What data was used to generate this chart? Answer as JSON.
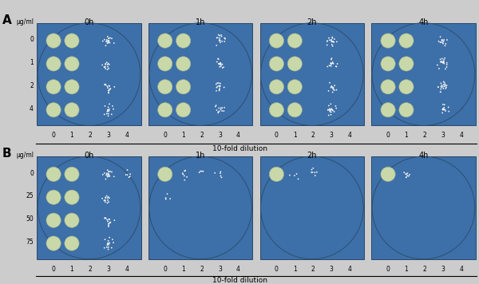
{
  "panel_A_label": "A",
  "panel_B_label": "B",
  "time_labels": [
    "0h",
    "1h",
    "2h",
    "4h"
  ],
  "panel_A_conc_labels": [
    "0",
    "1",
    "2",
    "4"
  ],
  "panel_B_conc_labels": [
    "0",
    "25",
    "50",
    "75"
  ],
  "dilution_labels": [
    "0",
    "1",
    "2",
    "3",
    "4"
  ],
  "xlabel": "10-fold dilution",
  "ylabel": "μg/ml",
  "plate_bg_color": "#3d6fa8",
  "spot_confluent_color": "#c8d8a8",
  "spot_light_color": "#dce8cc",
  "colony_color": "#f2f2f2",
  "fig_bg": "#cccccc",
  "panel_bg": "#c8c8c8",
  "panel_A": {
    "0h": [
      [
        2,
        2,
        3,
        2,
        0
      ],
      [
        2,
        2,
        3,
        2,
        0
      ],
      [
        2,
        2,
        3,
        2,
        0
      ],
      [
        2,
        2,
        3,
        2,
        0
      ]
    ],
    "1h": [
      [
        2,
        2,
        3,
        2,
        0
      ],
      [
        2,
        2,
        3,
        2,
        0
      ],
      [
        2,
        2,
        3,
        2,
        0
      ],
      [
        2,
        2,
        3,
        2,
        0
      ]
    ],
    "2h": [
      [
        2,
        2,
        3,
        2,
        0
      ],
      [
        2,
        2,
        3,
        2,
        0
      ],
      [
        2,
        2,
        3,
        2,
        0
      ],
      [
        2,
        2,
        3,
        2,
        0
      ]
    ],
    "4h": [
      [
        2,
        2,
        3,
        2,
        0
      ],
      [
        2,
        2,
        3,
        2,
        0
      ],
      [
        2,
        2,
        3,
        2,
        0
      ],
      [
        2,
        2,
        3,
        2,
        0
      ]
    ]
  },
  "panel_B": {
    "0h": [
      [
        2,
        2,
        3,
        2,
        1
      ],
      [
        2,
        2,
        3,
        2,
        0
      ],
      [
        2,
        2,
        3,
        2,
        0
      ],
      [
        2,
        2,
        3,
        2,
        0
      ]
    ],
    "1h": [
      [
        2,
        1,
        1,
        1,
        0
      ],
      [
        1,
        0,
        0,
        0,
        0
      ],
      [
        0,
        0,
        0,
        0,
        0
      ],
      [
        0,
        0,
        0,
        0,
        0
      ]
    ],
    "2h": [
      [
        2,
        1,
        1,
        0,
        0
      ],
      [
        0,
        0,
        0,
        0,
        0
      ],
      [
        0,
        0,
        0,
        0,
        0
      ],
      [
        0,
        0,
        0,
        0,
        0
      ]
    ],
    "4h": [
      [
        2,
        1,
        0,
        0,
        0
      ],
      [
        0,
        0,
        0,
        0,
        0
      ],
      [
        0,
        0,
        0,
        0,
        0
      ],
      [
        0,
        0,
        0,
        0,
        0
      ]
    ]
  },
  "spot_type_A": {
    "0h": [
      [
        1,
        1,
        2,
        2,
        0
      ],
      [
        1,
        1,
        2,
        2,
        0
      ],
      [
        1,
        1,
        2,
        2,
        0
      ],
      [
        1,
        1,
        2,
        2,
        0
      ]
    ],
    "1h": [
      [
        1,
        1,
        2,
        2,
        0
      ],
      [
        1,
        1,
        2,
        2,
        0
      ],
      [
        1,
        1,
        2,
        2,
        0
      ],
      [
        1,
        1,
        2,
        2,
        0
      ]
    ],
    "2h": [
      [
        1,
        1,
        2,
        2,
        0
      ],
      [
        1,
        1,
        2,
        2,
        0
      ],
      [
        1,
        1,
        2,
        2,
        0
      ],
      [
        1,
        1,
        2,
        2,
        0
      ]
    ],
    "4h": [
      [
        1,
        1,
        2,
        2,
        0
      ],
      [
        1,
        1,
        2,
        2,
        0
      ],
      [
        1,
        1,
        2,
        2,
        0
      ],
      [
        1,
        1,
        2,
        2,
        0
      ]
    ]
  },
  "spot_type_B": {
    "0h": [
      [
        1,
        1,
        2,
        2,
        2
      ],
      [
        1,
        1,
        2,
        2,
        0
      ],
      [
        1,
        1,
        2,
        2,
        0
      ],
      [
        1,
        1,
        2,
        2,
        0
      ]
    ],
    "1h": [
      [
        1,
        2,
        2,
        2,
        0
      ],
      [
        2,
        0,
        0,
        0,
        0
      ],
      [
        0,
        0,
        0,
        0,
        0
      ],
      [
        0,
        0,
        0,
        0,
        0
      ]
    ],
    "2h": [
      [
        1,
        2,
        2,
        0,
        0
      ],
      [
        0,
        0,
        0,
        0,
        0
      ],
      [
        0,
        0,
        0,
        0,
        0
      ],
      [
        0,
        0,
        0,
        0,
        0
      ]
    ],
    "4h": [
      [
        1,
        2,
        0,
        0,
        0
      ],
      [
        0,
        0,
        0,
        0,
        0
      ],
      [
        0,
        0,
        0,
        0,
        0
      ],
      [
        0,
        0,
        0,
        0,
        0
      ]
    ]
  }
}
